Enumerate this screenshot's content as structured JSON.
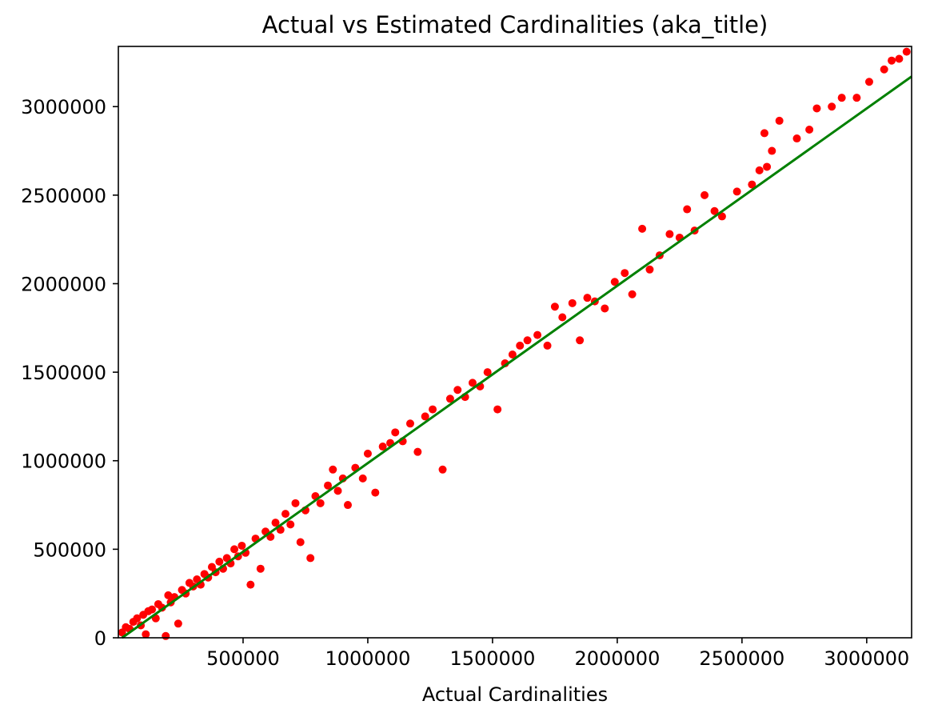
{
  "chart_data": {
    "type": "scatter",
    "title": "Actual vs Estimated Cardinalities (aka_title)",
    "xlabel": "Actual Cardinalities",
    "ylabel": "",
    "xlim": [
      0,
      3180000
    ],
    "ylim": [
      0,
      3340000
    ],
    "xticks": [
      500000,
      1000000,
      1500000,
      2000000,
      2500000,
      3000000
    ],
    "yticks": [
      0,
      500000,
      1000000,
      1500000,
      2000000,
      2500000,
      3000000
    ],
    "xtick_labels": [
      "500000",
      "1000000",
      "1500000",
      "2000000",
      "2500000",
      "3000000"
    ],
    "ytick_labels": [
      "0",
      "500000",
      "1000000",
      "1500000",
      "2000000",
      "2500000",
      "3000000"
    ],
    "grid": false,
    "legend": null,
    "series": [
      {
        "kind": "scatter",
        "color": "#ff0000",
        "points": [
          [
            15000,
            30000
          ],
          [
            30000,
            60000
          ],
          [
            45000,
            50000
          ],
          [
            60000,
            90000
          ],
          [
            75000,
            110000
          ],
          [
            90000,
            70000
          ],
          [
            100000,
            130000
          ],
          [
            110000,
            20000
          ],
          [
            120000,
            150000
          ],
          [
            135000,
            160000
          ],
          [
            150000,
            110000
          ],
          [
            160000,
            190000
          ],
          [
            175000,
            170000
          ],
          [
            190000,
            10000
          ],
          [
            200000,
            240000
          ],
          [
            210000,
            200000
          ],
          [
            225000,
            230000
          ],
          [
            240000,
            80000
          ],
          [
            255000,
            270000
          ],
          [
            270000,
            250000
          ],
          [
            285000,
            310000
          ],
          [
            300000,
            290000
          ],
          [
            315000,
            330000
          ],
          [
            330000,
            300000
          ],
          [
            345000,
            360000
          ],
          [
            360000,
            340000
          ],
          [
            375000,
            400000
          ],
          [
            390000,
            370000
          ],
          [
            405000,
            430000
          ],
          [
            420000,
            390000
          ],
          [
            435000,
            450000
          ],
          [
            450000,
            420000
          ],
          [
            465000,
            500000
          ],
          [
            480000,
            460000
          ],
          [
            495000,
            520000
          ],
          [
            510000,
            480000
          ],
          [
            530000,
            300000
          ],
          [
            550000,
            560000
          ],
          [
            570000,
            390000
          ],
          [
            590000,
            600000
          ],
          [
            610000,
            570000
          ],
          [
            630000,
            650000
          ],
          [
            650000,
            610000
          ],
          [
            670000,
            700000
          ],
          [
            690000,
            640000
          ],
          [
            710000,
            760000
          ],
          [
            730000,
            540000
          ],
          [
            750000,
            720000
          ],
          [
            770000,
            450000
          ],
          [
            790000,
            800000
          ],
          [
            810000,
            760000
          ],
          [
            840000,
            860000
          ],
          [
            860000,
            950000
          ],
          [
            880000,
            830000
          ],
          [
            900000,
            900000
          ],
          [
            920000,
            750000
          ],
          [
            950000,
            960000
          ],
          [
            980000,
            900000
          ],
          [
            1000000,
            1040000
          ],
          [
            1030000,
            820000
          ],
          [
            1060000,
            1080000
          ],
          [
            1090000,
            1100000
          ],
          [
            1110000,
            1160000
          ],
          [
            1140000,
            1110000
          ],
          [
            1170000,
            1210000
          ],
          [
            1200000,
            1050000
          ],
          [
            1230000,
            1250000
          ],
          [
            1260000,
            1290000
          ],
          [
            1300000,
            950000
          ],
          [
            1330000,
            1350000
          ],
          [
            1360000,
            1400000
          ],
          [
            1390000,
            1360000
          ],
          [
            1420000,
            1440000
          ],
          [
            1450000,
            1420000
          ],
          [
            1480000,
            1500000
          ],
          [
            1520000,
            1290000
          ],
          [
            1550000,
            1550000
          ],
          [
            1580000,
            1600000
          ],
          [
            1610000,
            1650000
          ],
          [
            1640000,
            1680000
          ],
          [
            1680000,
            1710000
          ],
          [
            1720000,
            1650000
          ],
          [
            1750000,
            1870000
          ],
          [
            1780000,
            1810000
          ],
          [
            1820000,
            1890000
          ],
          [
            1850000,
            1680000
          ],
          [
            1880000,
            1920000
          ],
          [
            1910000,
            1900000
          ],
          [
            1950000,
            1860000
          ],
          [
            1990000,
            2010000
          ],
          [
            2030000,
            2060000
          ],
          [
            2060000,
            1940000
          ],
          [
            2100000,
            2310000
          ],
          [
            2130000,
            2080000
          ],
          [
            2170000,
            2160000
          ],
          [
            2210000,
            2280000
          ],
          [
            2250000,
            2260000
          ],
          [
            2280000,
            2420000
          ],
          [
            2310000,
            2300000
          ],
          [
            2350000,
            2500000
          ],
          [
            2390000,
            2410000
          ],
          [
            2420000,
            2380000
          ],
          [
            2480000,
            2520000
          ],
          [
            2540000,
            2560000
          ],
          [
            2570000,
            2640000
          ],
          [
            2600000,
            2660000
          ],
          [
            2620000,
            2750000
          ],
          [
            2650000,
            2920000
          ],
          [
            2720000,
            2820000
          ],
          [
            2770000,
            2870000
          ],
          [
            2800000,
            2990000
          ],
          [
            2860000,
            3000000
          ],
          [
            2900000,
            3050000
          ],
          [
            2960000,
            3050000
          ],
          [
            3010000,
            3140000
          ],
          [
            3070000,
            3210000
          ],
          [
            3100000,
            3260000
          ],
          [
            3130000,
            3270000
          ],
          [
            3160000,
            3310000
          ],
          [
            2590000,
            2850000
          ]
        ]
      },
      {
        "kind": "line",
        "color": "#008000",
        "points": [
          [
            15000,
            0
          ],
          [
            3180000,
            3170000
          ]
        ]
      }
    ]
  }
}
